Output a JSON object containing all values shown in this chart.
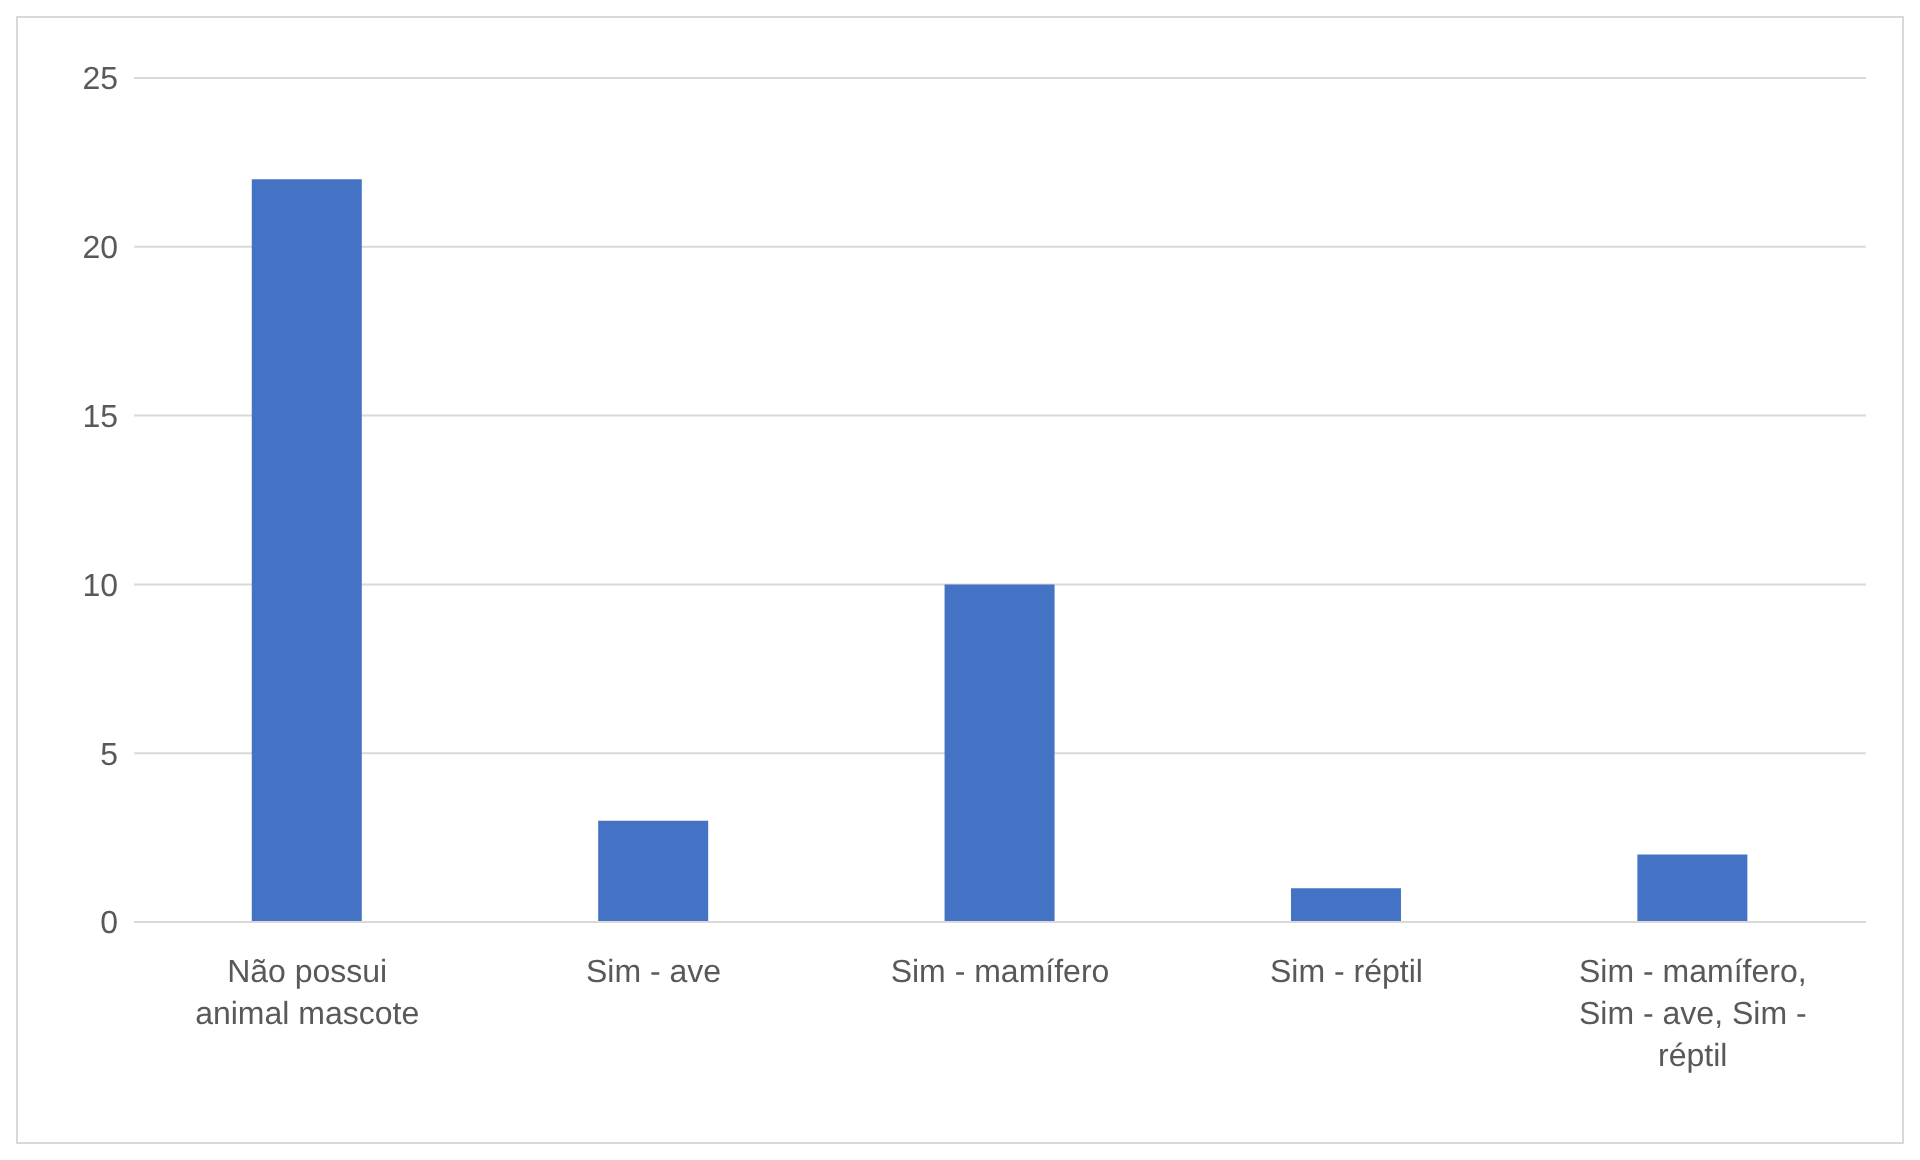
{
  "chart_data": {
    "type": "bar",
    "categories": [
      "Não possui animal mascote",
      "Sim - ave",
      "Sim - mamífero",
      "Sim - réptil",
      "Sim - mamífero, Sim - ave, Sim - réptil"
    ],
    "values": [
      22,
      3,
      10,
      1,
      2
    ],
    "color": "#4472c4",
    "ylim": [
      0,
      25
    ],
    "yticks": [
      0,
      5,
      10,
      15,
      20,
      25
    ],
    "grid": "y",
    "legend": false
  }
}
